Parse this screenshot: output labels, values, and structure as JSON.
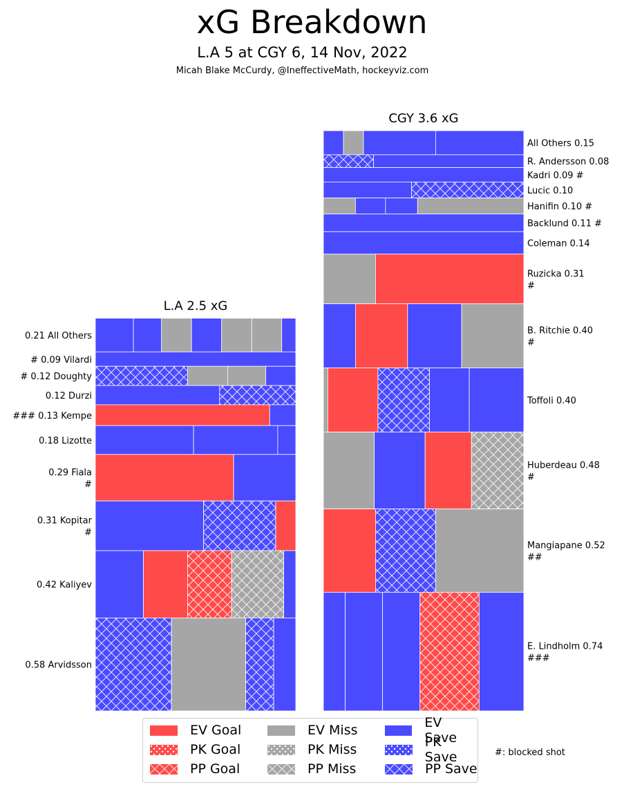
{
  "title": "xG Breakdown",
  "subtitle": "L.A 5 at CGY 6, 14 Nov, 2022",
  "credit": "Micah Blake McCurdy, @IneffectiveMath, hockeyviz.com",
  "colors": {
    "goal": "#ff4a4a",
    "miss": "#a6a6a6",
    "save": "#4a4aff"
  },
  "legend": {
    "items": [
      {
        "label": "EV Goal",
        "type": "goal",
        "pattern": "ev"
      },
      {
        "label": "PK Goal",
        "type": "goal",
        "pattern": "pk"
      },
      {
        "label": "PP Goal",
        "type": "goal",
        "pattern": "pp"
      },
      {
        "label": "EV Miss",
        "type": "miss",
        "pattern": "ev"
      },
      {
        "label": "PK Miss",
        "type": "miss",
        "pattern": "pk"
      },
      {
        "label": "PP Miss",
        "type": "miss",
        "pattern": "pp"
      },
      {
        "label": "EV Save",
        "type": "save",
        "pattern": "ev"
      },
      {
        "label": "PK Save",
        "type": "save",
        "pattern": "pk"
      },
      {
        "label": "PP Save",
        "type": "save",
        "pattern": "pp"
      }
    ],
    "blocked_note": "#: blocked shot"
  },
  "chart_data": {
    "type": "treemap",
    "teams": [
      {
        "title": "L.A 2.5 xG",
        "side": "left",
        "players": [
          {
            "label": "0.21 All Others",
            "xg": 0.21,
            "shots": [
              {
                "t": "save",
                "p": "ev",
                "w": 0.19
              },
              {
                "t": "save",
                "p": "ev",
                "w": 0.14
              },
              {
                "t": "miss",
                "p": "ev",
                "w": 0.15
              },
              {
                "t": "save",
                "p": "ev",
                "w": 0.15
              },
              {
                "t": "miss",
                "p": "ev",
                "w": 0.15
              },
              {
                "t": "miss",
                "p": "ev",
                "w": 0.15
              },
              {
                "t": "save",
                "p": "ev",
                "w": 0.07
              }
            ]
          },
          {
            "label": "# 0.09 Vilardi",
            "xg": 0.09,
            "shots": [
              {
                "t": "save",
                "p": "ev",
                "w": 1
              }
            ]
          },
          {
            "label": "# 0.12 Doughty",
            "xg": 0.12,
            "shots": [
              {
                "t": "save",
                "p": "pp",
                "w": 0.46
              },
              {
                "t": "miss",
                "p": "ev",
                "w": 0.2
              },
              {
                "t": "miss",
                "p": "ev",
                "w": 0.19
              },
              {
                "t": "save",
                "p": "ev",
                "w": 0.15
              }
            ]
          },
          {
            "label": "0.12 Durzi",
            "xg": 0.12,
            "shots": [
              {
                "t": "save",
                "p": "ev",
                "w": 0.62
              },
              {
                "t": "save",
                "p": "pp",
                "w": 0.38
              }
            ]
          },
          {
            "label": "### 0.13 Kempe",
            "xg": 0.13,
            "shots": [
              {
                "t": "goal",
                "p": "ev",
                "w": 0.87
              },
              {
                "t": "save",
                "p": "ev",
                "w": 0.13
              }
            ]
          },
          {
            "label": "0.18 Lizotte",
            "xg": 0.18,
            "shots": [
              {
                "t": "save",
                "p": "ev",
                "w": 0.49
              },
              {
                "t": "save",
                "p": "ev",
                "w": 0.42
              },
              {
                "t": "save",
                "p": "ev",
                "w": 0.09
              }
            ]
          },
          {
            "label": "0.29 Fiala\n#",
            "xg": 0.29,
            "shots": [
              {
                "t": "goal",
                "p": "ev",
                "w": 0.69
              },
              {
                "t": "save",
                "p": "ev",
                "w": 0.31
              }
            ]
          },
          {
            "label": "0.31 Kopitar\n#",
            "xg": 0.31,
            "shots": [
              {
                "t": "save",
                "p": "ev",
                "w": 0.54
              },
              {
                "t": "save",
                "p": "pp",
                "w": 0.36
              },
              {
                "t": "goal",
                "p": "ev",
                "w": 0.1
              }
            ]
          },
          {
            "label": "0.42 Kaliyev",
            "xg": 0.42,
            "shots": [
              {
                "t": "save",
                "p": "ev",
                "w": 0.24
              },
              {
                "t": "goal",
                "p": "ev",
                "w": 0.22
              },
              {
                "t": "goal",
                "p": "pp",
                "w": 0.22
              },
              {
                "t": "miss",
                "p": "pp",
                "w": 0.26
              },
              {
                "t": "save",
                "p": "ev",
                "w": 0.06
              }
            ]
          },
          {
            "label": "0.58 Arvidsson",
            "xg": 0.58,
            "shots": [
              {
                "t": "save",
                "p": "pp",
                "w": 0.38
              },
              {
                "t": "miss",
                "p": "ev",
                "w": 0.37
              },
              {
                "t": "save",
                "p": "pp",
                "w": 0.14
              },
              {
                "t": "save",
                "p": "ev",
                "w": 0.11
              }
            ]
          }
        ]
      },
      {
        "title": "CGY 3.6 xG",
        "side": "right",
        "players": [
          {
            "label": "All Others 0.15",
            "xg": 0.15,
            "shots": [
              {
                "t": "save",
                "p": "ev",
                "w": 0.1
              },
              {
                "t": "miss",
                "p": "ev",
                "w": 0.1
              },
              {
                "t": "save",
                "p": "ev",
                "w": 0.36
              },
              {
                "t": "save",
                "p": "ev",
                "w": 0.44
              }
            ]
          },
          {
            "label": "R. Andersson 0.08",
            "xg": 0.08,
            "shots": [
              {
                "t": "save",
                "p": "pp",
                "w": 0.25
              },
              {
                "t": "save",
                "p": "ev",
                "w": 0.75
              }
            ]
          },
          {
            "label": "Kadri 0.09 #",
            "xg": 0.09,
            "shots": [
              {
                "t": "save",
                "p": "ev",
                "w": 1
              }
            ]
          },
          {
            "label": "Lucic 0.10",
            "xg": 0.1,
            "shots": [
              {
                "t": "save",
                "p": "ev",
                "w": 0.44
              },
              {
                "t": "save",
                "p": "pp",
                "w": 0.56
              }
            ]
          },
          {
            "label": "Hanifin 0.10 #",
            "xg": 0.1,
            "shots": [
              {
                "t": "miss",
                "p": "ev",
                "w": 0.16
              },
              {
                "t": "save",
                "p": "ev",
                "w": 0.15
              },
              {
                "t": "save",
                "p": "ev",
                "w": 0.16
              },
              {
                "t": "miss",
                "p": "ev",
                "w": 0.53
              }
            ]
          },
          {
            "label": "Backlund 0.11 #",
            "xg": 0.11,
            "shots": [
              {
                "t": "save",
                "p": "ev",
                "w": 1
              }
            ]
          },
          {
            "label": "Coleman 0.14",
            "xg": 0.14,
            "shots": [
              {
                "t": "save",
                "p": "ev",
                "w": 1
              }
            ]
          },
          {
            "label": "Ruzicka 0.31\n#",
            "xg": 0.31,
            "shots": [
              {
                "t": "miss",
                "p": "ev",
                "w": 0.26
              },
              {
                "t": "goal",
                "p": "ev",
                "w": 0.74
              }
            ]
          },
          {
            "label": "B. Ritchie 0.40\n#",
            "xg": 0.4,
            "shots": [
              {
                "t": "save",
                "p": "ev",
                "w": 0.16
              },
              {
                "t": "goal",
                "p": "ev",
                "w": 0.26
              },
              {
                "t": "save",
                "p": "ev",
                "w": 0.27
              },
              {
                "t": "miss",
                "p": "ev",
                "w": 0.31
              }
            ]
          },
          {
            "label": "Toffoli 0.40",
            "xg": 0.4,
            "shots": [
              {
                "t": "miss",
                "p": "ev",
                "w": 0.03
              },
              {
                "t": "goal",
                "p": "ev",
                "w": 0.34
              },
              {
                "t": "save",
                "p": "pp",
                "w": 0.35
              },
              {
                "t": "save",
                "p": "ev",
                "w": 0.27
              },
              {
                "t": "save",
                "p": "ev",
                "w": 0.37
              }
            ]
          },
          {
            "label": "Huberdeau 0.48\n#",
            "xg": 0.48,
            "shots": [
              {
                "t": "miss",
                "p": "ev",
                "w": 0.34
              },
              {
                "t": "save",
                "p": "ev",
                "w": 0.34
              },
              {
                "t": "goal",
                "p": "ev",
                "w": 0.31
              },
              {
                "t": "miss",
                "p": "pp",
                "w": 0.35
              }
            ]
          },
          {
            "label": "Mangiapane 0.52\n##",
            "xg": 0.52,
            "shots": [
              {
                "t": "goal",
                "p": "ev",
                "w": 0.26
              },
              {
                "t": "save",
                "p": "pp",
                "w": 0.3
              },
              {
                "t": "miss",
                "p": "ev",
                "w": 0.44
              }
            ]
          },
          {
            "label": "E. Lindholm 0.74\n###",
            "xg": 0.74,
            "shots": [
              {
                "t": "save",
                "p": "ev",
                "w": 0.21
              },
              {
                "t": "save",
                "p": "ev",
                "w": 0.36
              },
              {
                "t": "save",
                "p": "ev",
                "w": 0.36
              },
              {
                "t": "goal",
                "p": "pp",
                "w": 0.57
              },
              {
                "t": "save",
                "p": "ev",
                "w": 0.43
              }
            ]
          }
        ]
      }
    ]
  }
}
